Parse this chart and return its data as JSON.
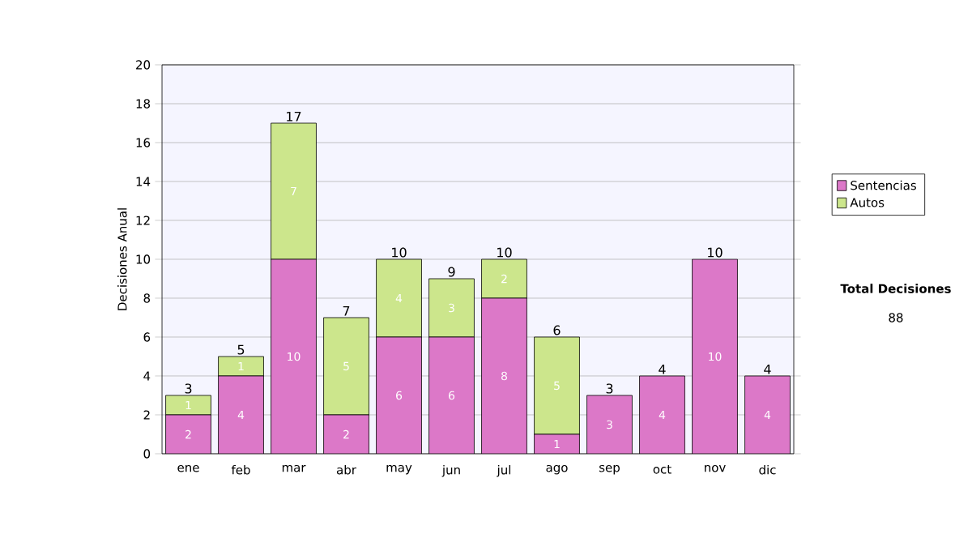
{
  "chart_data": {
    "type": "bar",
    "stacked": true,
    "ylabel": "Decisiones Anual",
    "categories": [
      "ene",
      "feb",
      "mar",
      "abr",
      "may",
      "jun",
      "jul",
      "ago",
      "sep",
      "oct",
      "nov",
      "dic"
    ],
    "series": [
      {
        "name": "Sentencias",
        "color": "#dc78c8",
        "values": [
          2,
          4,
          10,
          2,
          6,
          6,
          8,
          1,
          3,
          4,
          10,
          4
        ],
        "value_labels": [
          "2",
          "4",
          "10",
          "2",
          "6",
          "6",
          "8",
          "1",
          "3",
          "4",
          "10",
          "4"
        ]
      },
      {
        "name": "Autos",
        "color": "#cce68c",
        "values": [
          1,
          1,
          7,
          5,
          4,
          3,
          2,
          5,
          0,
          0,
          0,
          0
        ],
        "value_labels": [
          "1",
          "1",
          "7",
          "5",
          "4",
          "3",
          "2",
          "5",
          null,
          null,
          null,
          null
        ]
      }
    ],
    "totals": [
      "3",
      "5",
      "17",
      "7",
      "10",
      "9",
      "10",
      "6",
      "3",
      "4",
      "10",
      "4"
    ],
    "ylim": [
      0,
      20
    ],
    "yticks": [
      0,
      2,
      4,
      6,
      8,
      10,
      12,
      14,
      16,
      18,
      20
    ],
    "grid": "y",
    "legend": "right",
    "annotations": [
      "Total Decisiones",
      "88"
    ]
  }
}
